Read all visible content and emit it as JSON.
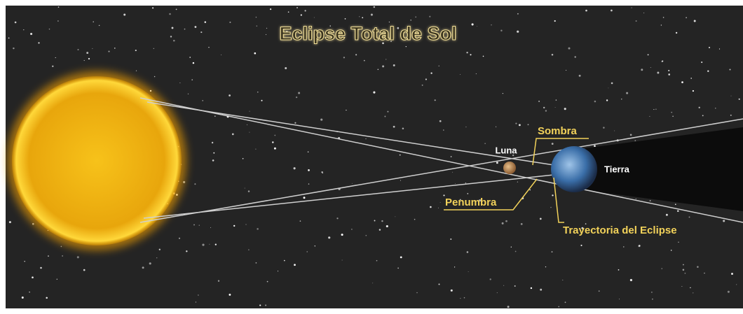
{
  "title": "Eclipse Total de Sol",
  "labels": {
    "moon": "Luna",
    "shadow": "Sombra",
    "earth": "Tierra",
    "penumbra": "Penumbra",
    "path": "Trayectoria del Eclipse"
  }
}
